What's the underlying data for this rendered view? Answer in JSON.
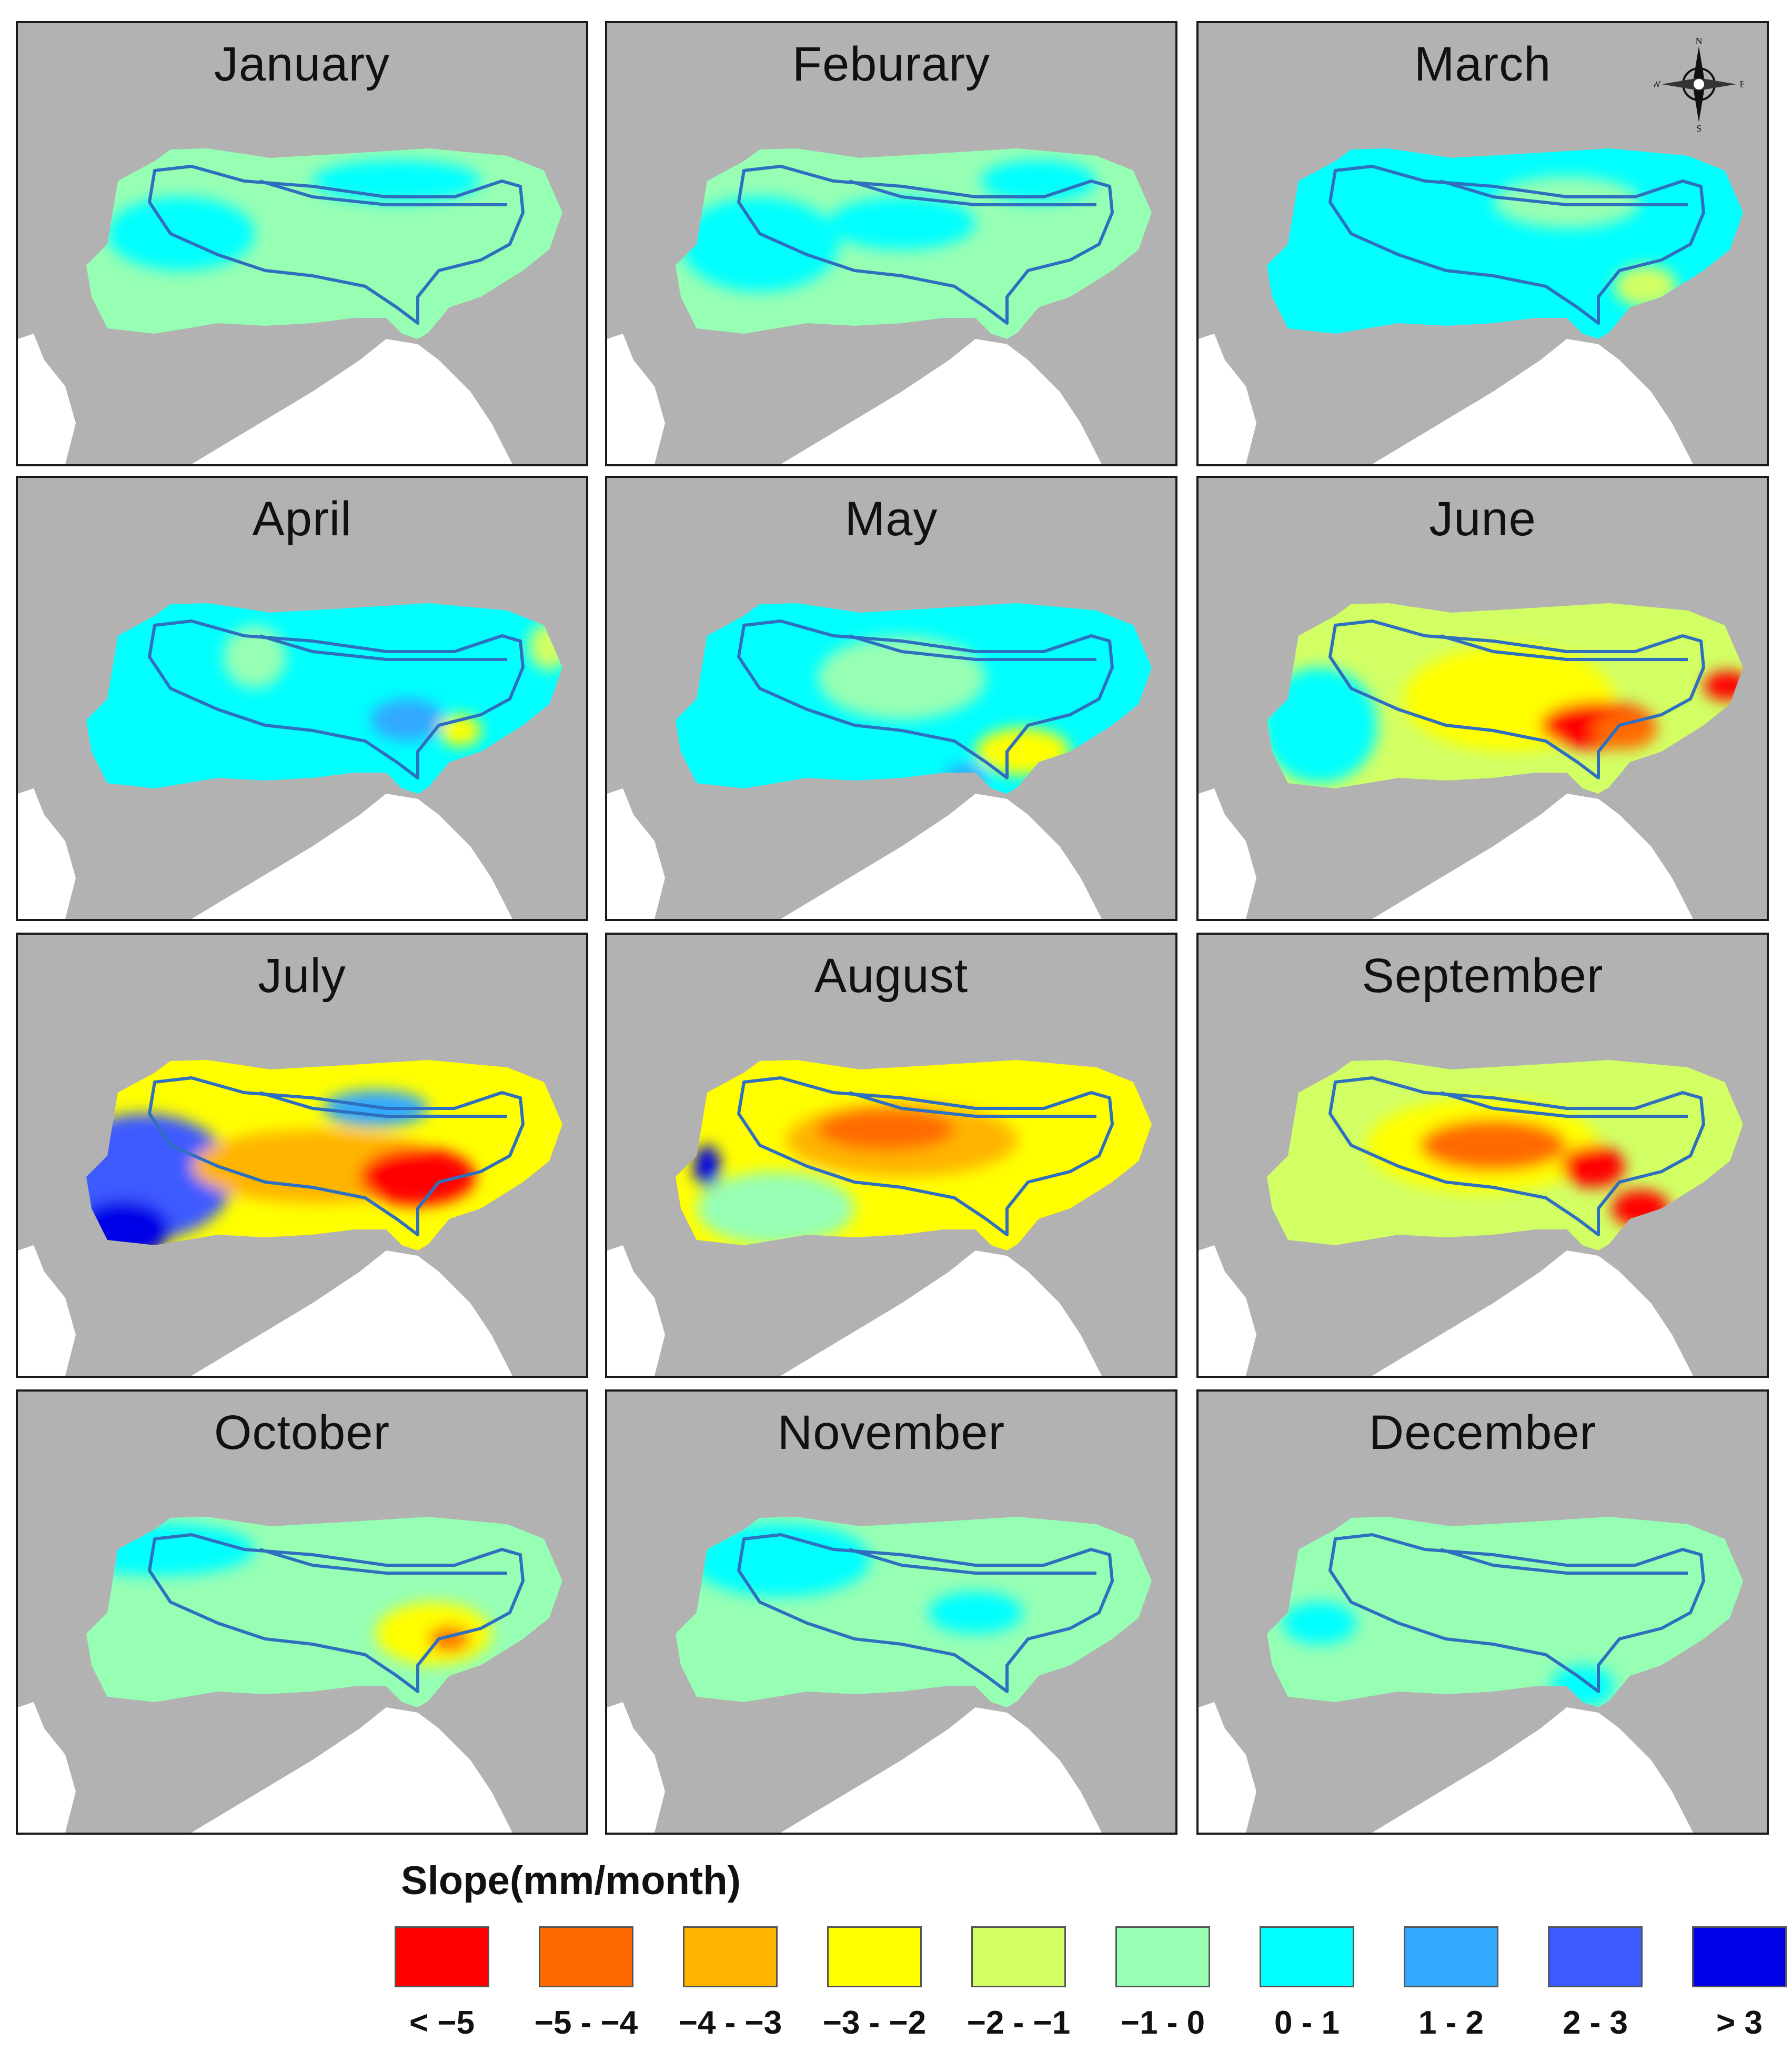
{
  "figure": {
    "panels": [
      {
        "title": "January",
        "band": "-1 - 0",
        "blobs": [
          {
            "cls": "0 - 1"
          },
          {
            "cls": "0 - 1"
          }
        ]
      },
      {
        "title": "Feburary",
        "band": "-1 - 0",
        "blobs": [
          {
            "cls": "0 - 1"
          },
          {
            "cls": "0 - 1"
          },
          {
            "cls": "0 - 1"
          }
        ]
      },
      {
        "title": "March",
        "band": "0 - 1",
        "blobs": [
          {
            "cls": "-1 - 0"
          },
          {
            "cls": "-2 - -1"
          }
        ]
      },
      {
        "title": "April",
        "band": "0 - 1",
        "blobs": [
          {
            "cls": "-1 - 0"
          },
          {
            "cls": "1 - 2"
          },
          {
            "cls": "-3 - -2"
          },
          {
            "cls": "-2 - -1"
          }
        ]
      },
      {
        "title": "May",
        "band": "0 - 1",
        "blobs": [
          {
            "cls": "-1 - 0"
          },
          {
            "cls": "-3 - -2"
          },
          {
            "cls": "1 - 2"
          }
        ]
      },
      {
        "title": "June",
        "band": "-2 - -1",
        "blobs": [
          {
            "cls": "-3 - -2"
          },
          {
            "cls": "< -5"
          },
          {
            "cls": "-5 - -4"
          },
          {
            "cls": "< -5"
          },
          {
            "cls": "0 - 1"
          }
        ]
      },
      {
        "title": "July",
        "band": "-3 - -2",
        "blobs": [
          {
            "cls": "2 - 3"
          },
          {
            "cls": "> 3"
          },
          {
            "cls": "-4 - -3"
          },
          {
            "cls": "< -5"
          },
          {
            "cls": "1 - 2"
          }
        ]
      },
      {
        "title": "August",
        "band": "-3 - -2",
        "blobs": [
          {
            "cls": "-1 - 0"
          },
          {
            "cls": "-4 - -3"
          },
          {
            "cls": "-5 - -4"
          },
          {
            "cls": "> 3"
          }
        ]
      },
      {
        "title": "September",
        "band": "-2 - -1",
        "blobs": [
          {
            "cls": "-3 - -2"
          },
          {
            "cls": "-5 - -4"
          },
          {
            "cls": "< -5"
          },
          {
            "cls": "< -5"
          }
        ]
      },
      {
        "title": "October",
        "band": "-1 - 0",
        "blobs": [
          {
            "cls": "0 - 1"
          },
          {
            "cls": "-3 - -2"
          },
          {
            "cls": "-5 - -4"
          }
        ]
      },
      {
        "title": "November",
        "band": "-1 - 0",
        "blobs": [
          {
            "cls": "0 - 1"
          },
          {
            "cls": "0 - 1"
          }
        ]
      },
      {
        "title": "December",
        "band": "-1 - 0",
        "blobs": [
          {
            "cls": "0 - 1"
          },
          {
            "cls": "0 - 1"
          }
        ]
      }
    ],
    "compass": {
      "n": "N",
      "s": "S",
      "e": "E",
      "w": "W"
    },
    "legend": {
      "title": "Slope(mm/month)",
      "classes": [
        {
          "label": "< −5",
          "key": "< -5",
          "color": "#ff0000"
        },
        {
          "label": "−5 - −4",
          "key": "-5 - -4",
          "color": "#ff6a00"
        },
        {
          "label": "−4 - −3",
          "key": "-4 - -3",
          "color": "#ffb400"
        },
        {
          "label": "−3 - −2",
          "key": "-3 - -2",
          "color": "#ffff00"
        },
        {
          "label": "−2 - −1",
          "key": "-2 - -1",
          "color": "#d2ff64"
        },
        {
          "label": "−1 - 0",
          "key": "-1 - 0",
          "color": "#96ffb4"
        },
        {
          "label": "0 - 1",
          "key": "0 - 1",
          "color": "#00ffff"
        },
        {
          "label": "1 - 2",
          "key": "1 - 2",
          "color": "#32a8ff"
        },
        {
          "label": "2 - 3",
          "key": "2 - 3",
          "color": "#3c5aff"
        },
        {
          "label": "> 3",
          "key": "> 3",
          "color": "#0000e6"
        }
      ]
    }
  }
}
